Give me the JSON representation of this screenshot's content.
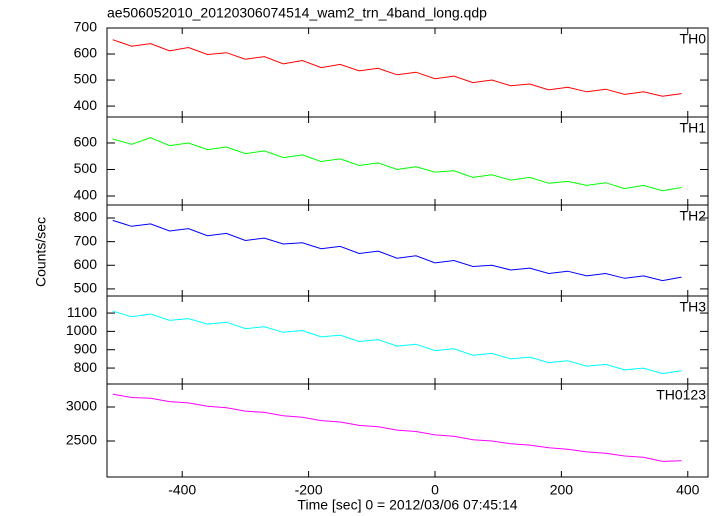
{
  "chart_data": [
    {
      "type": "line",
      "title": "ae506052010_20120306074514_wam2_trn_4band_long.qdp",
      "x": [
        -510,
        -480,
        -450,
        -420,
        -390,
        -360,
        -330,
        -300,
        -270,
        -240,
        -210,
        -180,
        -150,
        -120,
        -90,
        -60,
        -30,
        0,
        30,
        60,
        90,
        120,
        150,
        180,
        210,
        240,
        270,
        300,
        330,
        360,
        390
      ],
      "xlim": [
        -519,
        432
      ],
      "xticks": [
        -400,
        -200,
        0,
        200,
        400
      ],
      "ylim": [
        358,
        700
      ],
      "yticks": [
        400,
        500,
        600,
        700
      ],
      "series": [
        {
          "name": "TH0",
          "color": "#ff0000",
          "values": [
            655,
            630,
            640,
            612,
            625,
            598,
            605,
            580,
            590,
            562,
            575,
            548,
            560,
            535,
            545,
            520,
            530,
            505,
            515,
            490,
            500,
            478,
            485,
            462,
            472,
            455,
            465,
            445,
            455,
            438,
            448
          ]
        }
      ]
    },
    {
      "type": "line",
      "x": [
        -510,
        -480,
        -450,
        -420,
        -390,
        -360,
        -330,
        -300,
        -270,
        -240,
        -210,
        -180,
        -150,
        -120,
        -90,
        -60,
        -30,
        0,
        30,
        60,
        90,
        120,
        150,
        180,
        210,
        240,
        270,
        300,
        330,
        360,
        390
      ],
      "xlim": [
        -519,
        432
      ],
      "xticks": [
        -400,
        -200,
        0,
        200,
        400
      ],
      "ylim": [
        366,
        698
      ],
      "yticks": [
        400,
        500,
        600
      ],
      "series": [
        {
          "name": "TH1",
          "color": "#00ff00",
          "values": [
            615,
            595,
            620,
            590,
            600,
            575,
            585,
            560,
            570,
            545,
            555,
            530,
            540,
            515,
            525,
            500,
            510,
            490,
            495,
            470,
            480,
            460,
            470,
            448,
            455,
            440,
            450,
            428,
            440,
            420,
            432
          ]
        }
      ]
    },
    {
      "type": "line",
      "ylabel": "Counts/sec",
      "x": [
        -510,
        -480,
        -450,
        -420,
        -390,
        -360,
        -330,
        -300,
        -270,
        -240,
        -210,
        -180,
        -150,
        -120,
        -90,
        -60,
        -30,
        0,
        30,
        60,
        90,
        120,
        150,
        180,
        210,
        240,
        270,
        300,
        330,
        360,
        390
      ],
      "xlim": [
        -519,
        432
      ],
      "xticks": [
        -400,
        -200,
        0,
        200,
        400
      ],
      "ylim": [
        470,
        855
      ],
      "yticks": [
        500,
        600,
        700,
        800
      ],
      "series": [
        {
          "name": "TH2",
          "color": "#0000ff",
          "values": [
            790,
            765,
            775,
            745,
            755,
            725,
            735,
            705,
            715,
            690,
            695,
            670,
            680,
            650,
            660,
            630,
            640,
            610,
            620,
            595,
            600,
            580,
            588,
            565,
            575,
            555,
            565,
            545,
            555,
            535,
            550
          ]
        }
      ]
    },
    {
      "type": "line",
      "x": [
        -510,
        -480,
        -450,
        -420,
        -390,
        -360,
        -330,
        -300,
        -270,
        -240,
        -210,
        -180,
        -150,
        -120,
        -90,
        -60,
        -30,
        0,
        30,
        60,
        90,
        120,
        150,
        180,
        210,
        240,
        270,
        300,
        330,
        360,
        390
      ],
      "xlim": [
        -519,
        432
      ],
      "xticks": [
        -400,
        -200,
        0,
        200,
        400
      ],
      "ylim": [
        713,
        1193
      ],
      "yticks": [
        800,
        900,
        1000,
        1100
      ],
      "series": [
        {
          "name": "TH3",
          "color": "#00ffff",
          "values": [
            1110,
            1080,
            1095,
            1060,
            1070,
            1040,
            1050,
            1015,
            1025,
            995,
            1005,
            970,
            980,
            945,
            955,
            920,
            930,
            895,
            905,
            870,
            880,
            850,
            860,
            830,
            840,
            810,
            820,
            790,
            800,
            770,
            785
          ]
        }
      ]
    },
    {
      "type": "line",
      "xlabel": "Time [sec] 0 = 2012/03/06 07:45:14",
      "x": [
        -510,
        -480,
        -450,
        -420,
        -390,
        -360,
        -330,
        -300,
        -270,
        -240,
        -210,
        -180,
        -150,
        -120,
        -90,
        -60,
        -30,
        0,
        30,
        60,
        90,
        120,
        150,
        180,
        210,
        240,
        270,
        300,
        330,
        360,
        390
      ],
      "xlim": [
        -519,
        432
      ],
      "xticks": [
        -400,
        -200,
        0,
        200,
        400
      ],
      "ylim": [
        1971,
        3338
      ],
      "yticks": [
        2500,
        3000
      ],
      "series": [
        {
          "name": "TH0123",
          "color": "#ff00ff",
          "values": [
            3190,
            3140,
            3130,
            3080,
            3060,
            3010,
            2990,
            2940,
            2920,
            2870,
            2850,
            2800,
            2780,
            2730,
            2710,
            2660,
            2640,
            2590,
            2570,
            2520,
            2500,
            2460,
            2440,
            2400,
            2380,
            2340,
            2320,
            2280,
            2260,
            2200,
            2210
          ]
        }
      ]
    }
  ]
}
